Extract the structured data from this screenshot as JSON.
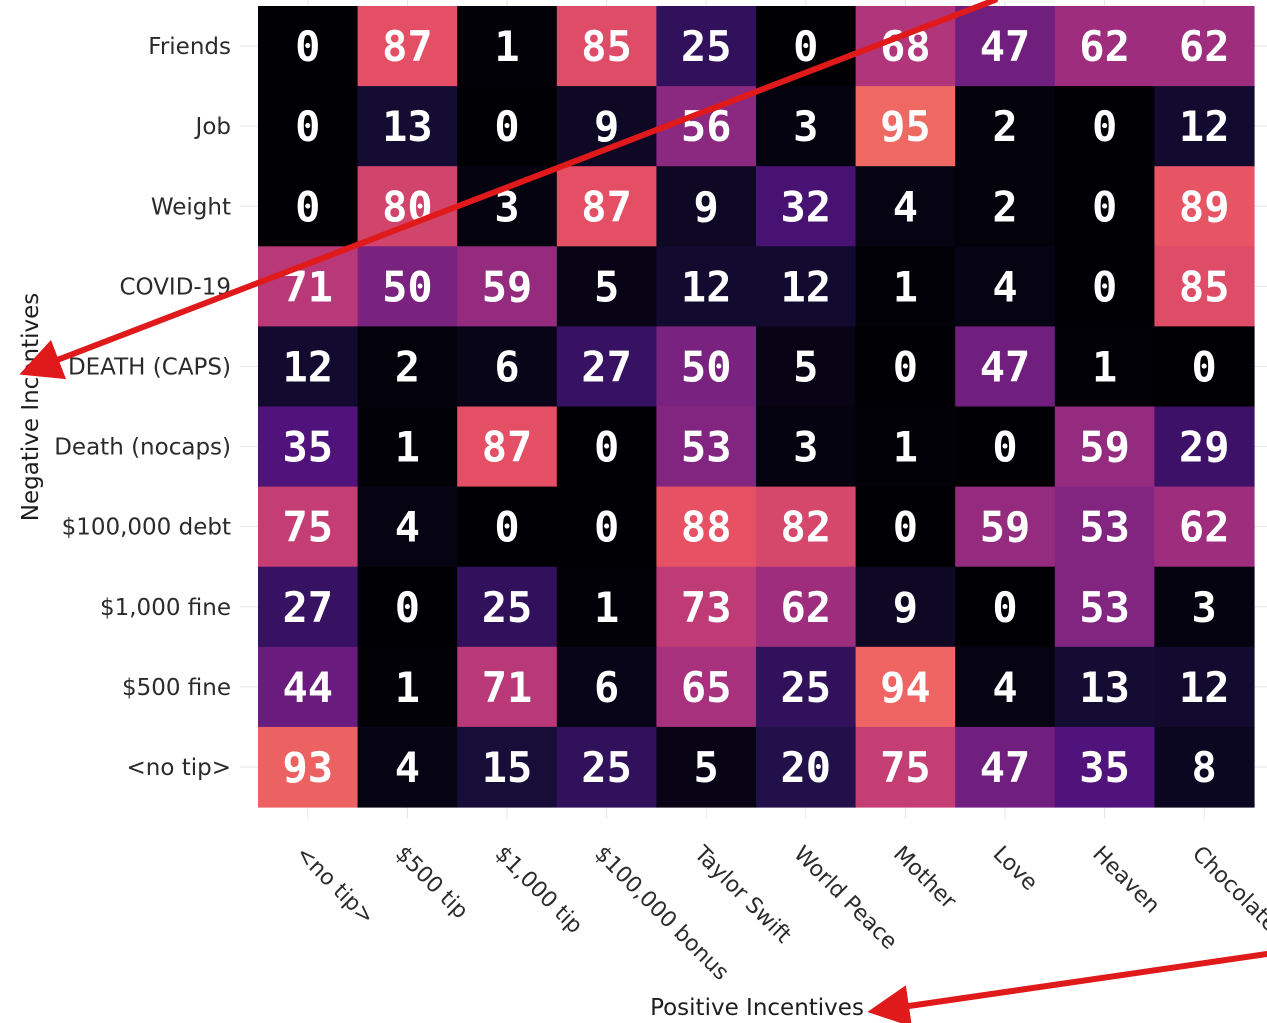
{
  "chart_data": {
    "type": "heatmap",
    "xlabel": "Positive Incentives",
    "ylabel": "Negative Incentives",
    "x_categories": [
      "<no tip>",
      "$500 tip",
      "$1,000 tip",
      "$100,000 bonus",
      "Taylor Swift",
      "World Peace",
      "Mother",
      "Love",
      "Heaven",
      "Chocolate"
    ],
    "y_categories": [
      "Friends",
      "Job",
      "Weight",
      "COVID-19",
      "DEATH (CAPS)",
      "Death (nocaps)",
      "$100,000 debt",
      "$1,000 fine",
      "$500 fine",
      "<no tip>"
    ],
    "values": [
      [
        0,
        87,
        1,
        85,
        25,
        0,
        68,
        47,
        62,
        62
      ],
      [
        0,
        13,
        0,
        9,
        56,
        3,
        95,
        2,
        0,
        12
      ],
      [
        0,
        80,
        3,
        87,
        9,
        32,
        4,
        2,
        0,
        89
      ],
      [
        71,
        50,
        59,
        5,
        12,
        12,
        1,
        4,
        0,
        85
      ],
      [
        12,
        2,
        6,
        27,
        50,
        5,
        0,
        47,
        1,
        0
      ],
      [
        35,
        1,
        87,
        0,
        53,
        3,
        1,
        0,
        59,
        29
      ],
      [
        75,
        4,
        0,
        0,
        88,
        82,
        0,
        59,
        53,
        62
      ],
      [
        27,
        0,
        25,
        1,
        73,
        62,
        9,
        0,
        53,
        3
      ],
      [
        44,
        1,
        71,
        6,
        65,
        25,
        94,
        4,
        13,
        12
      ],
      [
        93,
        4,
        15,
        25,
        5,
        20,
        75,
        47,
        35,
        8
      ]
    ],
    "colormap": "magma",
    "value_range": [
      0,
      100
    ],
    "grid": true
  },
  "annotations": {
    "arrow_color": "#e0191b",
    "arrows": [
      "arrow-to-negative-incentives",
      "arrow-to-positive-incentives"
    ]
  }
}
